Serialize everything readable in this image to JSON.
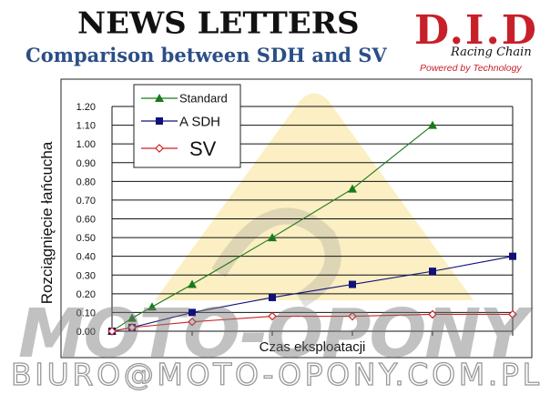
{
  "header": {
    "title": "NEWS LETTERS",
    "subtitle": "Comparison between SDH and SV"
  },
  "logo": {
    "brand": "D.I.D",
    "tagline": "Racing Chain",
    "slogan": "Powered by Technology"
  },
  "watermark": {
    "big": "MOTO-OPONY",
    "email": "BIURO@MOTO-OPONY.COM.PL"
  },
  "chart_data": {
    "type": "line",
    "title": "",
    "xlabel": "Czas eksploatacji",
    "ylabel": "Rozciągnięcie łańcucha",
    "xlim": [
      0,
      5
    ],
    "ylim": [
      0,
      1.2
    ],
    "yticks": [
      "0.00",
      "0.10",
      "0.20",
      "0.30",
      "0.40",
      "0.50",
      "0.60",
      "0.70",
      "0.80",
      "0.90",
      "1.00",
      "1.10",
      "1.20"
    ],
    "grid": true,
    "legend": "top-left",
    "series": [
      {
        "name": "Standard",
        "color": "#1a7a1a",
        "marker": "triangle",
        "x": [
          0,
          0.25,
          0.5,
          1,
          2,
          3,
          4
        ],
        "y": [
          0.0,
          0.07,
          0.13,
          0.25,
          0.5,
          0.76,
          1.1
        ]
      },
      {
        "name": "A SDH",
        "color": "#10107a",
        "marker": "square",
        "x": [
          0,
          0.25,
          1,
          2,
          3,
          4,
          5
        ],
        "y": [
          0.0,
          0.02,
          0.1,
          0.18,
          0.25,
          0.32,
          0.4
        ]
      },
      {
        "name": "SV",
        "color": "#d02020",
        "marker": "diamond-open",
        "x": [
          0,
          0.25,
          1,
          2,
          3,
          4,
          5
        ],
        "y": [
          0.0,
          0.02,
          0.05,
          0.08,
          0.08,
          0.09,
          0.09
        ]
      }
    ]
  }
}
